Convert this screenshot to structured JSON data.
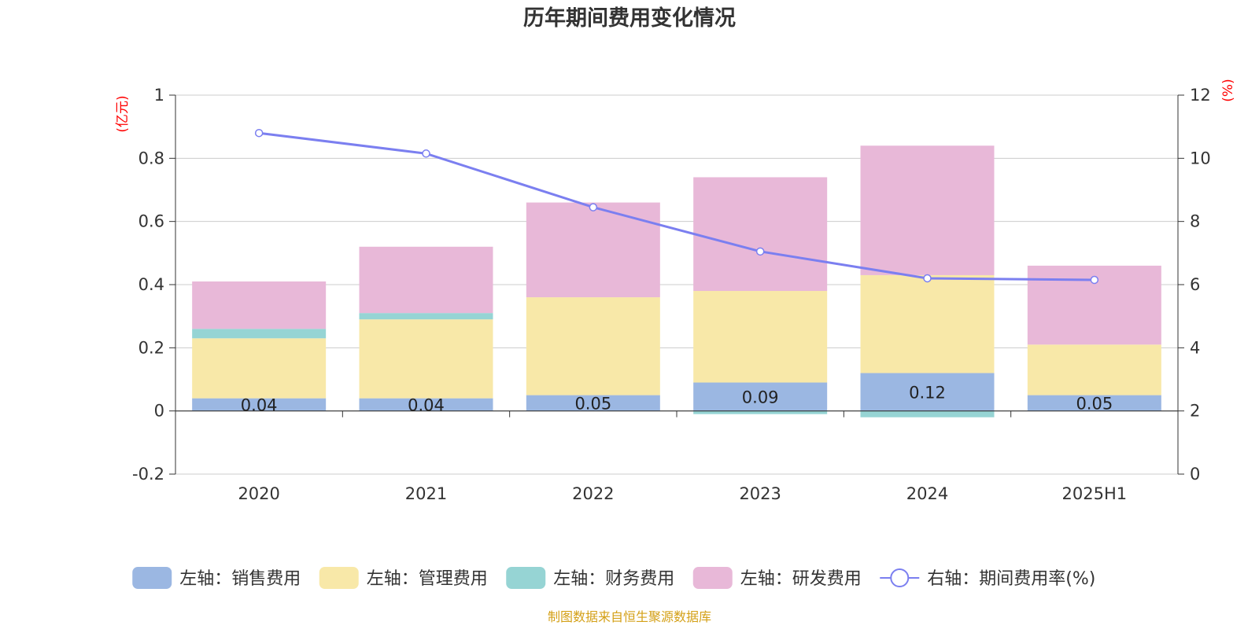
{
  "chart_data": {
    "type": "bar",
    "title": "历年期间费用变化情况",
    "categories": [
      "2020",
      "2021",
      "2022",
      "2023",
      "2024",
      "2025H1"
    ],
    "left_axis": {
      "unit": "(亿元)",
      "ylim": [
        -0.2,
        1
      ],
      "ticks": [
        "-0.2",
        "0",
        "0.2",
        "0.4",
        "0.6",
        "0.8",
        "1"
      ]
    },
    "right_axis": {
      "unit": "(%)",
      "ylim": [
        0,
        12
      ],
      "ticks": [
        "0",
        "2",
        "4",
        "6",
        "8",
        "10",
        "12"
      ]
    },
    "series": [
      {
        "name": "左轴：销售费用",
        "type": "bar",
        "stacked": true,
        "color": "#9bb7e2",
        "values": [
          0.04,
          0.04,
          0.05,
          0.09,
          0.12,
          0.05
        ],
        "labels": [
          "0.04",
          "0.04",
          "0.05",
          "0.09",
          "0.12",
          "0.05"
        ]
      },
      {
        "name": "左轴：管理费用",
        "type": "bar",
        "stacked": true,
        "color": "#f8e8a8",
        "values": [
          0.19,
          0.25,
          0.31,
          0.29,
          0.31,
          0.16
        ]
      },
      {
        "name": "左轴：财务费用",
        "type": "bar",
        "stacked": true,
        "color": "#96d4d4",
        "values": [
          0.03,
          0.02,
          0.0,
          -0.01,
          -0.02,
          0.0
        ]
      },
      {
        "name": "左轴：研发费用",
        "type": "bar",
        "stacked": true,
        "color": "#e8b8d8",
        "values": [
          0.15,
          0.21,
          0.3,
          0.36,
          0.41,
          0.25
        ]
      },
      {
        "name": "右轴：期间费用率(%)",
        "type": "line",
        "axis": "right",
        "color": "#7b7ff0",
        "values": [
          10.8,
          10.15,
          8.45,
          7.05,
          6.2,
          6.15
        ]
      }
    ],
    "grid": true,
    "legend_position": "bottom"
  },
  "source": "制图数据来自恒生聚源数据库"
}
